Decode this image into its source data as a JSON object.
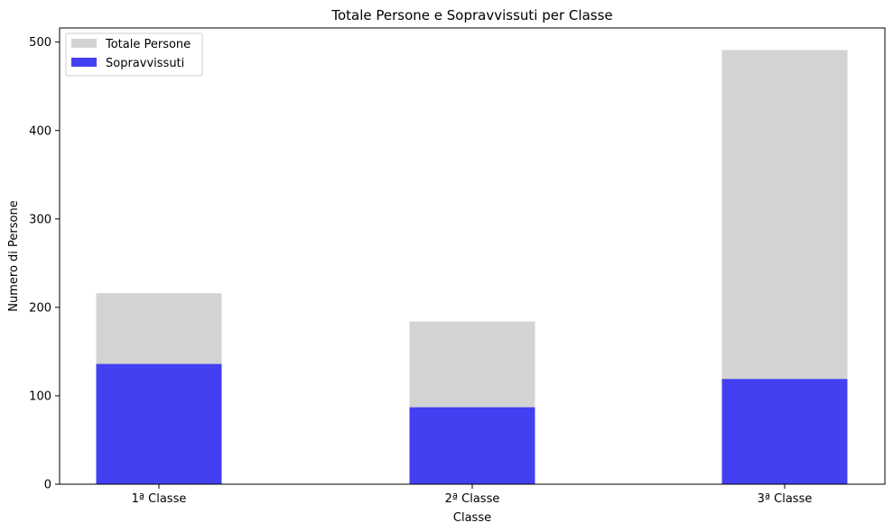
{
  "chart_data": {
    "type": "bar",
    "title": "Totale Persone e Sopravvissuti per Classe",
    "xlabel": "Classe",
    "ylabel": "Numero di Persone",
    "categories": [
      "1ª Classe",
      "2ª Classe",
      "3ª Classe"
    ],
    "series": [
      {
        "name": "Totale Persone",
        "values": [
          216,
          184,
          491
        ],
        "color": "#d3d3d3"
      },
      {
        "name": "Sopravvissuti",
        "values": [
          136,
          87,
          119
        ],
        "color": "#4340f2"
      }
    ],
    "ylim": [
      0,
      516
    ],
    "yticks": [
      0,
      100,
      200,
      300,
      400,
      500
    ],
    "legend": "top-left",
    "grid": false
  }
}
